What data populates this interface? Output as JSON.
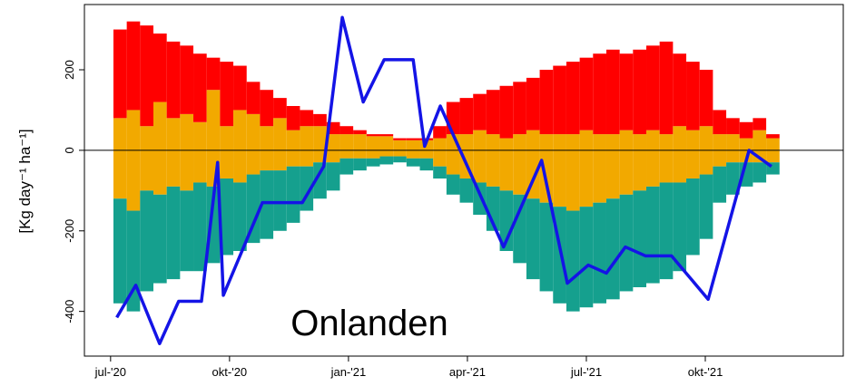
{
  "chart_data": {
    "type": "bar",
    "ylabel": "[Kg day⁻¹ ha⁻¹]",
    "annotation": "Onlanden",
    "annotation_color": "#1f5a73",
    "zero_line": 0,
    "xlim": [
      2020.445,
      2022.04
    ],
    "ylim": [
      -511,
      362
    ],
    "xticks": [
      {
        "value": 2020.5,
        "label": "jul-'20"
      },
      {
        "value": 2020.75,
        "label": "okt-'20"
      },
      {
        "value": 2021.0,
        "label": "jan-'21"
      },
      {
        "value": 2021.25,
        "label": "apr-'21"
      },
      {
        "value": 2021.5,
        "label": "jul-'21"
      },
      {
        "value": 2021.75,
        "label": "okt-'21"
      }
    ],
    "yticks": [
      -400,
      -200,
      0,
      200
    ],
    "x": [
      2020.52,
      2020.548,
      2020.576,
      2020.604,
      2020.632,
      2020.66,
      2020.688,
      2020.716,
      2020.744,
      2020.772,
      2020.8,
      2020.828,
      2020.856,
      2020.884,
      2020.912,
      2020.94,
      2020.968,
      2020.996,
      2021.024,
      2021.052,
      2021.08,
      2021.108,
      2021.136,
      2021.164,
      2021.192,
      2021.22,
      2021.248,
      2021.276,
      2021.304,
      2021.332,
      2021.36,
      2021.388,
      2021.416,
      2021.444,
      2021.472,
      2021.5,
      2021.528,
      2021.556,
      2021.584,
      2021.612,
      2021.64,
      2021.668,
      2021.696,
      2021.724,
      2021.752,
      2021.78,
      2021.808,
      2021.836,
      2021.864,
      2021.892
    ],
    "series": [
      {
        "color": "#f2a900",
        "values": [
          80,
          100,
          60,
          120,
          80,
          90,
          70,
          150,
          60,
          100,
          90,
          60,
          80,
          50,
          60,
          60,
          40,
          40,
          40,
          35,
          35,
          25,
          25,
          25,
          30,
          40,
          40,
          50,
          40,
          30,
          40,
          50,
          40,
          40,
          40,
          50,
          40,
          40,
          50,
          40,
          50,
          40,
          60,
          50,
          60,
          40,
          40,
          30,
          50,
          30
        ]
      },
      {
        "color": "#ff0000",
        "values": [
          220,
          220,
          250,
          170,
          190,
          170,
          170,
          80,
          160,
          110,
          80,
          90,
          50,
          60,
          40,
          30,
          30,
          20,
          10,
          5,
          5,
          5,
          5,
          5,
          30,
          80,
          90,
          90,
          110,
          130,
          130,
          130,
          160,
          170,
          180,
          180,
          200,
          210,
          190,
          210,
          210,
          230,
          180,
          170,
          140,
          60,
          40,
          40,
          30,
          10
        ]
      },
      {
        "color": "#f2a900",
        "values": [
          -120,
          -150,
          -100,
          -110,
          -90,
          -100,
          -80,
          -90,
          -70,
          -80,
          -60,
          -50,
          -50,
          -40,
          -40,
          -30,
          -30,
          -20,
          -20,
          -20,
          -15,
          -15,
          -20,
          -20,
          -40,
          -60,
          -70,
          -80,
          -90,
          -100,
          -110,
          -120,
          -130,
          -140,
          -150,
          -140,
          -130,
          -120,
          -110,
          -100,
          -90,
          -80,
          -80,
          -70,
          -60,
          -40,
          -30,
          -30,
          -30,
          -30
        ]
      },
      {
        "color": "#15a08e",
        "values": [
          -260,
          -250,
          -250,
          -220,
          -230,
          -200,
          -220,
          -190,
          -190,
          -170,
          -170,
          -170,
          -150,
          -140,
          -110,
          -90,
          -70,
          -40,
          -30,
          -20,
          -20,
          -15,
          -20,
          -30,
          -30,
          -50,
          -60,
          -80,
          -110,
          -150,
          -170,
          -200,
          -220,
          -240,
          -250,
          -250,
          -250,
          -250,
          -240,
          -240,
          -240,
          -240,
          -220,
          -190,
          -160,
          -90,
          -80,
          -60,
          -50,
          -30
        ]
      }
    ],
    "line": {
      "color": "#1414e6",
      "x": [
        2020.513,
        2020.553,
        2020.603,
        2020.643,
        2020.691,
        2020.725,
        2020.737,
        2020.819,
        2020.903,
        2020.948,
        2020.987,
        2021.031,
        2021.075,
        2021.136,
        2021.16,
        2021.193,
        2021.326,
        2021.406,
        2021.46,
        2021.504,
        2021.542,
        2021.582,
        2021.624,
        2021.679,
        2021.756,
        2021.842,
        2021.889
      ],
      "values": [
        -415,
        -335,
        -480,
        -375,
        -375,
        -30,
        -360,
        -130,
        -130,
        -40,
        330,
        120,
        225,
        225,
        10,
        110,
        -240,
        -25,
        -330,
        -285,
        -305,
        -240,
        -262,
        -262,
        -370,
        0,
        -40
      ]
    }
  }
}
